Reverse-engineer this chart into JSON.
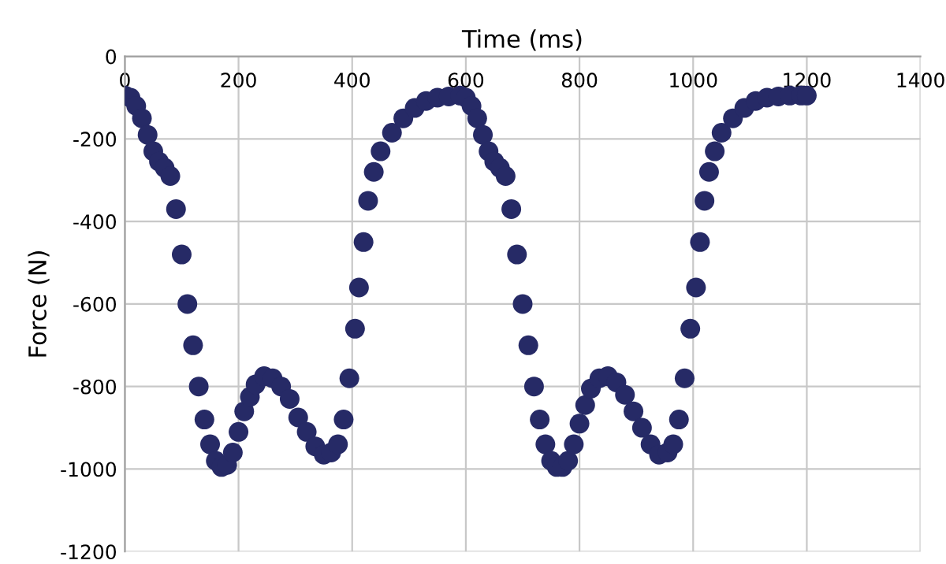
{
  "chart_data": {
    "type": "scatter",
    "xlabel": "Time (ms)",
    "ylabel": "Force (N)",
    "xlim": [
      0,
      1400
    ],
    "xticks": [
      0,
      200,
      400,
      600,
      800,
      1000,
      1200,
      1400
    ],
    "ylim": [
      -1200,
      0
    ],
    "yticks": [
      -1200,
      -1000,
      -800,
      -600,
      -400,
      -200,
      0
    ],
    "grid": true,
    "marker": "circle",
    "series": [
      {
        "color": "#262a66",
        "x": [
          0,
          10,
          20,
          30,
          40,
          50,
          60,
          70,
          80,
          90,
          100,
          110,
          120,
          130,
          140,
          150,
          160,
          170,
          180,
          190,
          200,
          210,
          220,
          230,
          245,
          260,
          275,
          290,
          305,
          320,
          335,
          350,
          363,
          375,
          385,
          395,
          405,
          412,
          420,
          428,
          438,
          450,
          470,
          490,
          510,
          530,
          550,
          570,
          590,
          600,
          610,
          620,
          630,
          640,
          650,
          660,
          670,
          680,
          690,
          700,
          710,
          720,
          730,
          740,
          750,
          760,
          770,
          780,
          790,
          800,
          810,
          820,
          835,
          850,
          865,
          880,
          895,
          910,
          925,
          940,
          955,
          965,
          975,
          985,
          995,
          1005,
          1012,
          1020,
          1028,
          1038,
          1050,
          1070,
          1090,
          1110,
          1130,
          1150,
          1170,
          1190,
          1200
        ],
        "values": [
          -95,
          -100,
          -120,
          -150,
          -190,
          -230,
          -255,
          -270,
          -290,
          -370,
          -480,
          -600,
          -700,
          -800,
          -880,
          -940,
          -980,
          -995,
          -990,
          -960,
          -910,
          -860,
          -825,
          -795,
          -775,
          -780,
          -800,
          -830,
          -875,
          -910,
          -945,
          -965,
          -960,
          -940,
          -880,
          -780,
          -660,
          -560,
          -450,
          -350,
          -280,
          -230,
          -185,
          -150,
          -125,
          -108,
          -100,
          -97,
          -95,
          -100,
          -120,
          -150,
          -190,
          -230,
          -255,
          -270,
          -290,
          -370,
          -480,
          -600,
          -700,
          -800,
          -880,
          -940,
          -980,
          -995,
          -995,
          -980,
          -940,
          -890,
          -845,
          -805,
          -780,
          -775,
          -790,
          -820,
          -860,
          -900,
          -940,
          -965,
          -960,
          -940,
          -880,
          -780,
          -660,
          -560,
          -450,
          -350,
          -280,
          -230,
          -185,
          -150,
          -125,
          -108,
          -100,
          -97,
          -95,
          -95,
          -95
        ]
      }
    ]
  }
}
